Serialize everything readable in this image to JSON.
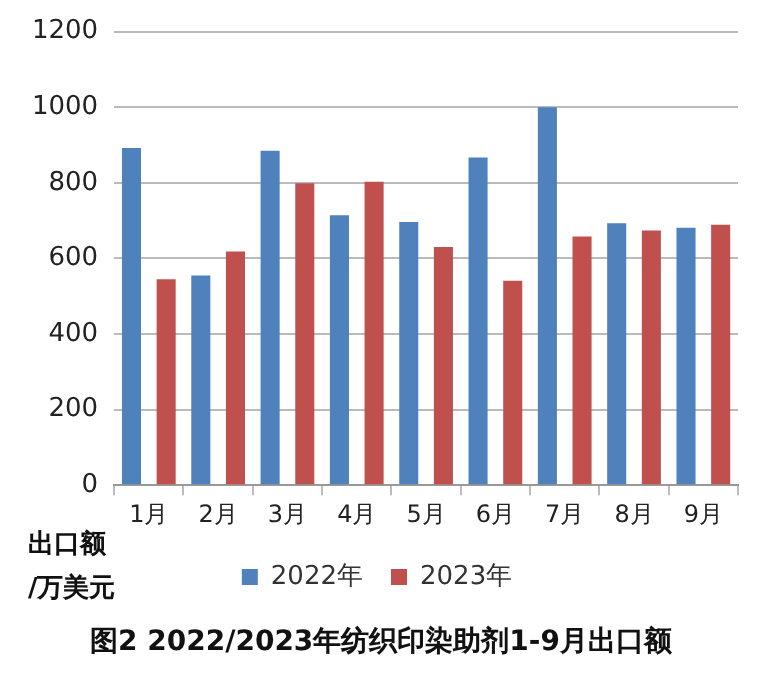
{
  "chart_data": {
    "type": "bar",
    "title": "图2 2022/2023年纺织印染助剂1-9月出口额",
    "ylabel": "出口额\n/万美元",
    "categories": [
      "1月",
      "2月",
      "3月",
      "4月",
      "5月",
      "6月",
      "7月",
      "8月",
      "9月"
    ],
    "series": [
      {
        "name": "2022年",
        "color": "#4f81bd",
        "values": [
          892,
          555,
          885,
          714,
          696,
          867,
          1000,
          693,
          681
        ]
      },
      {
        "name": "2023年",
        "color": "#c0504d",
        "values": [
          545,
          618,
          799,
          803,
          630,
          541,
          658,
          674,
          689
        ]
      }
    ],
    "ylim": [
      0,
      1200
    ],
    "yticks": [
      0,
      200,
      400,
      600,
      800,
      1000,
      1200
    ],
    "grid": "y",
    "legend": "bottom"
  }
}
